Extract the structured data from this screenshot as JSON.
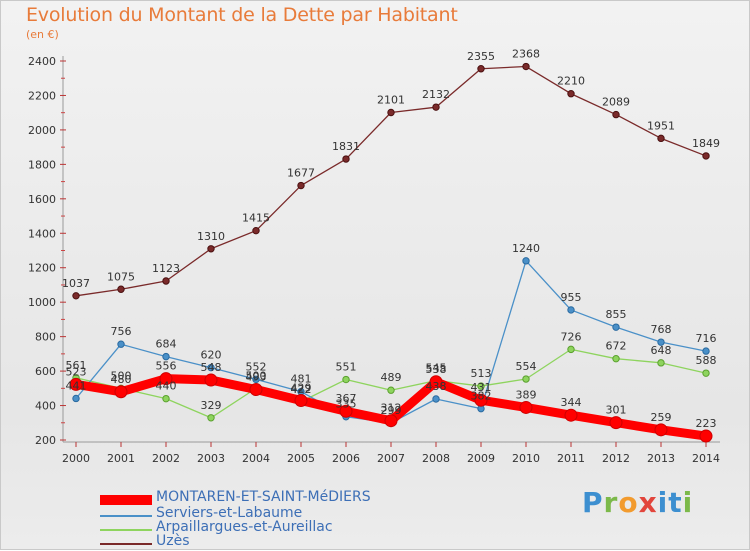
{
  "title": "Evolution du Montant de la Dette par Habitant",
  "subtitle": "(en €)",
  "brand": "Proxiti",
  "chart_data": {
    "type": "line",
    "title": "Evolution du Montant de la Dette par Habitant",
    "ylabel": "(en €)",
    "xlabel": "",
    "x": [
      "2000",
      "2001",
      "2002",
      "2003",
      "2004",
      "2005",
      "2006",
      "2007",
      "2008",
      "2009",
      "2010",
      "2011",
      "2012",
      "2013",
      "2014"
    ],
    "ylim": [
      200,
      2400
    ],
    "yticks": [
      200,
      400,
      600,
      800,
      1000,
      1200,
      1400,
      1600,
      1800,
      2000,
      2200,
      2400
    ],
    "grid": false,
    "legend_position": "bottom-left",
    "series": [
      {
        "name": "MONTAREN-ET-SAINT-MéDIERS",
        "color": "#ff0000",
        "values": [
          523,
          480,
          556,
          548,
          493,
          429,
          367,
          312,
          538,
          431,
          389,
          344,
          301,
          259,
          223
        ]
      },
      {
        "name": "Serviers-et-Labaume",
        "color": "#4a90c8",
        "values": [
          441,
          756,
          684,
          620,
          552,
          481,
          335,
          299,
          438,
          382,
          1240,
          955,
          855,
          768,
          716
        ]
      },
      {
        "name": "Arpaillargues-et-Aureillac",
        "color": "#8ed45e",
        "values": [
          561,
          500,
          440,
          329,
          500,
          422,
          551,
          489,
          545,
          513,
          554,
          726,
          672,
          648,
          588
        ]
      },
      {
        "name": "Uzès",
        "color": "#7a2a2a",
        "values": [
          1037,
          1075,
          1123,
          1310,
          1415,
          1677,
          1831,
          2101,
          2132,
          2355,
          2368,
          2210,
          2089,
          1951,
          1849
        ]
      }
    ]
  }
}
